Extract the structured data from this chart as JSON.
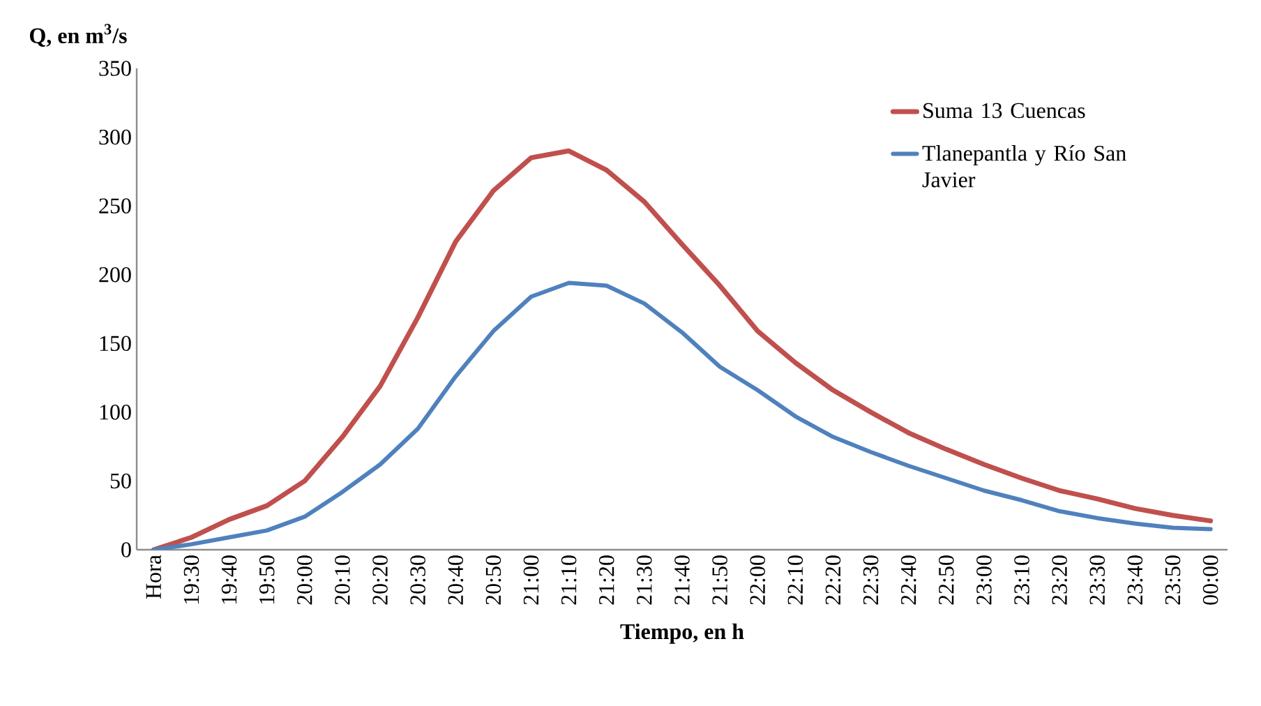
{
  "chart_data": {
    "type": "line",
    "xlabel": "Tiempo, en h",
    "ylabel": "Q, en m$^{3}$/s",
    "categories": [
      "Hora",
      "19:30",
      "19:40",
      "19:50",
      "20:00",
      "20:10",
      "20:20",
      "20:30",
      "20:40",
      "20:50",
      "21:00",
      "21:10",
      "21:20",
      "21:30",
      "21:40",
      "21:50",
      "22:00",
      "22:10",
      "22:20",
      "22:30",
      "22:40",
      "22:50",
      "23:00",
      "23:10",
      "23:20",
      "23:30",
      "23:40",
      "23:50",
      "00:00"
    ],
    "series": [
      {
        "name": "Suma 13 Cuencas",
        "color": "#c0504d",
        "values": [
          0,
          9,
          22,
          32,
          50,
          82,
          119,
          169,
          224,
          261,
          285,
          290,
          276,
          253,
          222,
          192,
          159,
          136,
          116,
          100,
          85,
          73,
          62,
          52,
          43,
          37,
          30,
          25,
          21
        ]
      },
      {
        "name": "Tlanepantla y Río San Javier",
        "color": "#4f81bd",
        "values": [
          0,
          4,
          9,
          14,
          24,
          42,
          62,
          88,
          126,
          159,
          184,
          194,
          192,
          179,
          158,
          133,
          116,
          97,
          82,
          71,
          61,
          52,
          43,
          36,
          28,
          23,
          19,
          16,
          15
        ]
      }
    ],
    "ylim": [
      0,
      350
    ],
    "yticks": [
      0,
      50,
      100,
      150,
      200,
      250,
      300,
      350
    ],
    "legend": "top right"
  }
}
